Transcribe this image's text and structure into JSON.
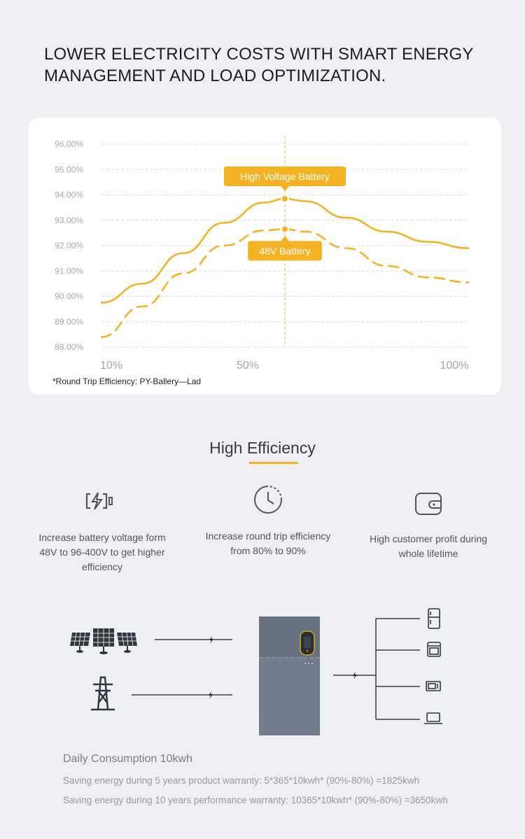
{
  "headline": "LOWER ELECTRICITY COSTS WITH SMART ENERGY MANAGEMENT AND LOAD OPTIMIZATION.",
  "chart_data": {
    "type": "line",
    "x_tick_labels": [
      "10%",
      "50%",
      "100%"
    ],
    "y_tick_labels": [
      "96.00%",
      "95.00%",
      "94.00%",
      "93.00%",
      "92.00%",
      "91.00%",
      "90.00%",
      "89.00%",
      "88.00%"
    ],
    "ylim": [
      88,
      96
    ],
    "xlim": [
      10,
      100
    ],
    "grid": true,
    "series": [
      {
        "name": "High Voltage Battery",
        "style": "solid",
        "color": "#f5b323",
        "x": [
          10,
          20,
          30,
          40,
          50,
          55,
          60,
          70,
          80,
          90,
          100
        ],
        "y": [
          89.75,
          90.5,
          91.7,
          92.9,
          93.7,
          93.85,
          93.75,
          93.1,
          92.55,
          92.15,
          91.9
        ]
      },
      {
        "name": "48V Battery",
        "style": "dashed",
        "color": "#f5b323",
        "x": [
          10,
          20,
          30,
          40,
          50,
          55,
          60,
          70,
          80,
          90,
          100
        ],
        "y": [
          88.4,
          89.6,
          90.9,
          92.0,
          92.6,
          92.65,
          92.55,
          91.9,
          91.2,
          90.75,
          90.55
        ]
      }
    ],
    "marker_x": 55,
    "footnote": "*Round Trip Efficiency: PY-Ballery—Lad"
  },
  "section_title": "High Efficiency",
  "features": [
    {
      "icon": "battery-charge-icon",
      "text": "Increase battery voltage form 48V to 96-400V to get higher efficiency"
    },
    {
      "icon": "clock-icon",
      "text": "Increase round trip efficiency from 80% to 90%"
    },
    {
      "icon": "wallet-icon",
      "text": "High customer profit during whole lifetime"
    }
  ],
  "diagram": {
    "sources": [
      "solar-panels-icon",
      "power-tower-icon"
    ],
    "loads": [
      "refrigerator-icon",
      "oven-icon",
      "microwave-icon",
      "laptop-icon"
    ]
  },
  "consumption_title": "Daily Consumption 10kwh",
  "saving_lines": [
    "Saving energy during 5 years product warranty: 5*365*10kwh* (90%-80%) =1825kwh",
    "Saving energy during 10 years performance warranty: 10365*10kwh* (90%-80%) =3650kwh"
  ],
  "colors": {
    "accent": "#f5b323",
    "background": "#eeeff3",
    "cabinet": "#6f7a8a"
  }
}
